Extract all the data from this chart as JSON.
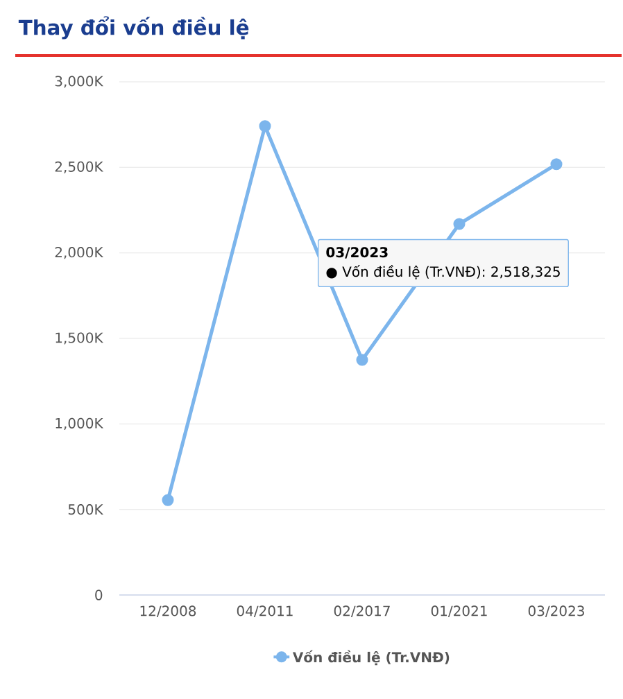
{
  "chart_data": {
    "type": "line",
    "title": "Thay đổi vốn điều lệ",
    "categories": [
      "12/2008",
      "04/2011",
      "02/2017",
      "01/2021",
      "03/2023"
    ],
    "series": [
      {
        "name": "Vốn điều lệ (Tr.VNĐ)",
        "color": "#7cb5ec",
        "values": [
          555000,
          2741000,
          1374000,
          2169000,
          2518325
        ]
      }
    ],
    "ylim": [
      0,
      3000000
    ],
    "yticks": [
      0,
      {
        "value": 500000,
        "label": "500K"
      },
      {
        "value": 1000000,
        "label": "1,000K"
      },
      {
        "value": 1500000,
        "label": "1,500K"
      },
      {
        "value": 2000000,
        "label": "2,000K"
      },
      {
        "value": 2500000,
        "label": "2,500K"
      },
      {
        "value": 3000000,
        "label": "3,000K"
      }
    ],
    "grid": "y",
    "legend": "bottom",
    "marker": "circle",
    "line_style": "solid",
    "annotations": [
      "03/2023",
      "● Vốn điều lệ (Tr.VNĐ): 2,518,325"
    ]
  }
}
